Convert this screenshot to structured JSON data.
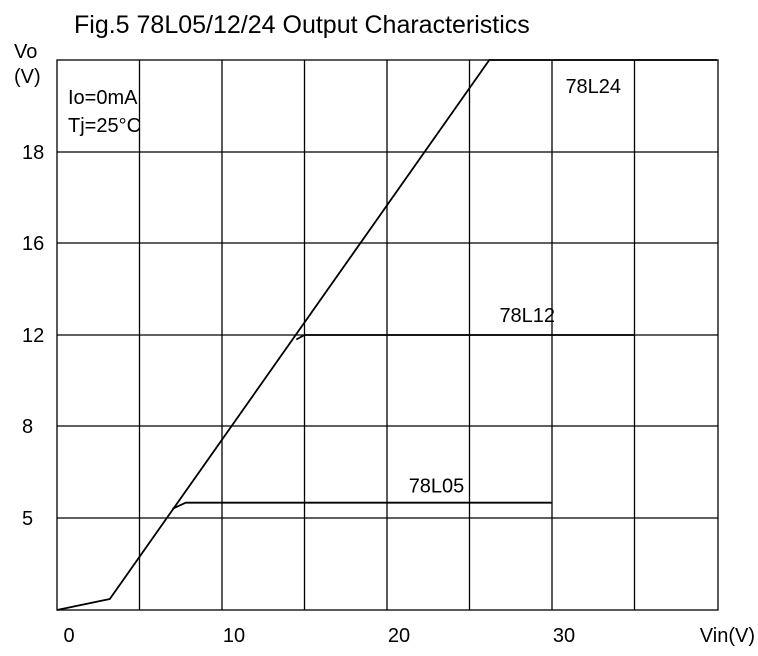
{
  "chart_data": {
    "type": "line",
    "title": "Fig.5 78L05/12/24 Output Characteristics",
    "xlabel": "Vin(V)",
    "ylabel_line1": "Vo",
    "ylabel_line2": "(V)",
    "conditions": [
      "Io=0mA",
      "Tj=25°C"
    ],
    "x_ticks": [
      "0",
      "10",
      "20",
      "30"
    ],
    "y_ticks": [
      "5",
      "8",
      "12",
      "16",
      "18"
    ],
    "grid": true,
    "series": [
      {
        "name": "78L24",
        "x": [
          0,
          3.2,
          26.2,
          40
        ],
        "y": [
          0,
          0.6,
          24,
          24
        ]
      },
      {
        "name": "78L12",
        "x": [
          14.5,
          15.0,
          35
        ],
        "y": [
          11.8,
          12.0,
          12.0
        ]
      },
      {
        "name": "78L05",
        "x": [
          7.0,
          7.8,
          30
        ],
        "y": [
          5.3,
          5.5,
          5.5
        ]
      }
    ]
  }
}
